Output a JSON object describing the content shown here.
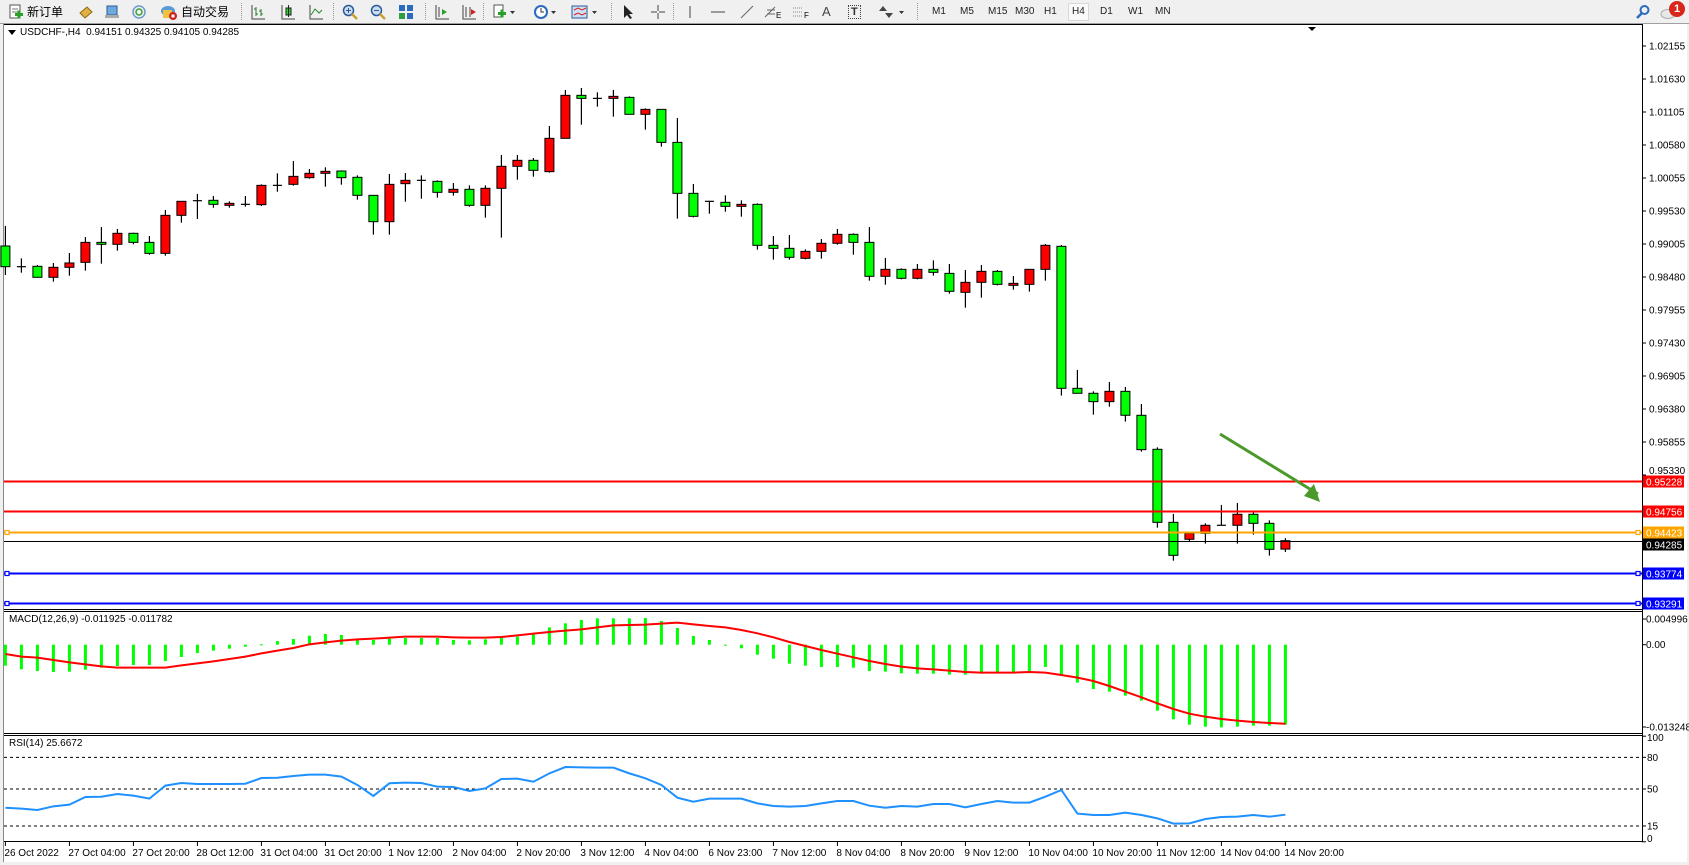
{
  "toolbar": {
    "new_order_label": "新订单",
    "auto_trading_label": "自动交易",
    "fibo_e_label": "E",
    "fibo_f_label": "F",
    "text_label": "A",
    "text_label_tool": "T",
    "timeframes": [
      "M1",
      "M5",
      "M15",
      "M30",
      "H1",
      "H4",
      "D1",
      "W1",
      "MN"
    ],
    "active_timeframe": "H4",
    "notification_count": "1",
    "icons": [
      "new-order-icon",
      "market-watch-icon",
      "navigator-icon",
      "signals-icon",
      "auto-trading-icon",
      "bar-chart-icon",
      "candlestick-icon",
      "line-chart-icon",
      "zoom-in-icon",
      "zoom-out-icon",
      "tile-windows-icon",
      "auto-scroll-icon",
      "chart-shift-icon",
      "new-chart-icon",
      "periods-clock-icon",
      "template-icon",
      "cursor-icon",
      "crosshair-icon",
      "vertical-line-icon",
      "horizontal-line-icon",
      "trendline-icon",
      "fibonacci-icon",
      "fibonacci-fan-icon",
      "text-icon",
      "text-label-icon",
      "arrows-icon",
      "search-icon",
      "notification-icon"
    ]
  },
  "chart": {
    "header": "USDCHF-,H4  0.94151 0.94325 0.94105 0.94285",
    "macd_label": "MACD(12,26,9) -0.011925 -0.011782",
    "rsi_label": "RSI(14) 25.6672",
    "colors": {
      "bull": "#ff0000",
      "bear": "#00ff00",
      "macd_hist": "#00ff00",
      "macd_signal": "#ff0000",
      "rsi": "#1e90ff",
      "arrow": "#4a9a2a"
    }
  },
  "chart_data": [
    {
      "type": "candlestick",
      "symbol": "USDCHF-",
      "timeframe": "H4",
      "ohlc_order": [
        "open",
        "high",
        "low",
        "close"
      ],
      "y_ticks": [
        "1.02155",
        "1.01630",
        "1.01105",
        "1.00580",
        "1.00055",
        "0.99530",
        "0.99005",
        "0.98480",
        "0.97955",
        "0.97430",
        "0.96905",
        "0.96380",
        "0.95855",
        "0.95330"
      ],
      "ylim": [
        0.93198,
        1.02489
      ],
      "x_tick_labels": [
        "26 Oct 2022",
        "27 Oct 04:00",
        "27 Oct 20:00",
        "28 Oct 12:00",
        "31 Oct 04:00",
        "31 Oct 20:00",
        "1 Nov 12:00",
        "2 Nov 04:00",
        "2 Nov 20:00",
        "3 Nov 12:00",
        "4 Nov 04:00",
        "6 Nov 23:00",
        "7 Nov 12:00",
        "8 Nov 04:00",
        "8 Nov 20:00",
        "9 Nov 12:00",
        "10 Nov 04:00",
        "10 Nov 20:00",
        "11 Nov 12:00",
        "14 Nov 04:00",
        "14 Nov 20:00"
      ],
      "horizontal_lines": [
        {
          "price": "0.95228",
          "color": "#ff0000"
        },
        {
          "price": "0.94756",
          "color": "#ff0000"
        },
        {
          "price": "0.94423",
          "color": "#ffa500"
        },
        {
          "price": "0.94285",
          "color": "#000000"
        },
        {
          "price": "0.93774",
          "color": "#0000ff"
        },
        {
          "price": "0.93291",
          "color": "#0000ff"
        }
      ],
      "candles": [
        [
          0.98973,
          0.99291,
          0.98512,
          0.98644
        ],
        [
          0.98644,
          0.98777,
          0.98549,
          0.98644
        ],
        [
          0.9865,
          0.98671,
          0.98475,
          0.98475
        ],
        [
          0.98475,
          0.98703,
          0.98406,
          0.98634
        ],
        [
          0.98634,
          0.98862,
          0.98501,
          0.98703
        ],
        [
          0.98713,
          0.99116,
          0.98581,
          0.99031
        ],
        [
          0.99031,
          0.99275,
          0.98692,
          0.99
        ],
        [
          0.99,
          0.99244,
          0.98899,
          0.99175
        ],
        [
          0.99175,
          0.99185,
          0.99,
          0.99031
        ],
        [
          0.99031,
          0.99132,
          0.98835,
          0.98856
        ],
        [
          0.98856,
          0.99546,
          0.98819,
          0.99461
        ],
        [
          0.99461,
          0.99684,
          0.99344,
          0.99684
        ],
        [
          0.99684,
          0.998,
          0.99403,
          0.99694
        ],
        [
          0.997,
          0.99769,
          0.99583,
          0.99636
        ],
        [
          0.9962,
          0.99684,
          0.99583,
          0.99652
        ],
        [
          0.99636,
          0.99769,
          0.99599,
          0.99636
        ],
        [
          0.99631,
          0.99954,
          0.99609,
          0.99938
        ],
        [
          0.99938,
          1.00129,
          0.99837,
          0.99938
        ],
        [
          0.99954,
          1.00325,
          0.99933,
          1.00081
        ],
        [
          1.0006,
          1.00198,
          1.00044,
          1.00129
        ],
        [
          1.00129,
          1.00225,
          0.99917,
          1.00161
        ],
        [
          1.00166,
          1.00177,
          0.99949,
          1.0006
        ],
        [
          1.00066,
          1.00097,
          0.9971,
          0.99779
        ],
        [
          0.99779,
          0.99779,
          0.99153,
          0.9936
        ],
        [
          0.9936,
          1.00119,
          0.99153,
          0.99954
        ],
        [
          0.99965,
          1.00134,
          0.99678,
          1.00018
        ],
        [
          1.00018,
          1.00097,
          0.99726,
          1.00002
        ],
        [
          1.00002,
          1.00018,
          0.99742,
          0.99827
        ],
        [
          0.99827,
          0.99975,
          0.99774,
          0.99875
        ],
        [
          0.99875,
          0.99938,
          0.99599,
          0.9962
        ],
        [
          0.9962,
          0.99938,
          0.99424,
          0.99891
        ],
        [
          0.99891,
          1.00421,
          0.99106,
          1.00241
        ],
        [
          1.00241,
          1.00421,
          1.00028,
          1.00336
        ],
        [
          1.00336,
          1.00373,
          1.00076,
          1.00177
        ],
        [
          1.00156,
          1.00882,
          1.0014,
          1.00686
        ],
        [
          1.00686,
          1.01455,
          1.00686,
          1.0137
        ],
        [
          1.0137,
          1.01487,
          1.00903,
          1.01322
        ],
        [
          1.01322,
          1.01418,
          1.0119,
          1.01322
        ],
        [
          1.01322,
          1.01455,
          1.01031,
          1.01354
        ],
        [
          1.01338,
          1.01354,
          1.01068,
          1.01068
        ],
        [
          1.01068,
          1.01163,
          1.00824,
          1.01147
        ],
        [
          1.01147,
          1.01147,
          1.00553,
          1.00622
        ],
        [
          1.00622,
          1.01009,
          0.99408,
          0.99811
        ],
        [
          0.99811,
          0.99959,
          0.99429,
          0.99445
        ],
        [
          0.99684,
          0.99684,
          0.99487,
          0.99684
        ],
        [
          0.99668,
          0.99779,
          0.99519,
          0.99604
        ],
        [
          0.99604,
          0.997,
          0.9944,
          0.99636
        ],
        [
          0.99636,
          0.99652,
          0.98915,
          0.98984
        ],
        [
          0.98984,
          0.99132,
          0.98756,
          0.98936
        ],
        [
          0.98936,
          0.99148,
          0.98756,
          0.98793
        ],
        [
          0.98777,
          0.9892,
          0.98761,
          0.98888
        ],
        [
          0.98888,
          0.99084,
          0.98772,
          0.99016
        ],
        [
          0.99016,
          0.99244,
          0.98994,
          0.99159
        ],
        [
          0.99159,
          0.99175,
          0.98835,
          0.99031
        ],
        [
          0.99031,
          0.99275,
          0.98422,
          0.98491
        ],
        [
          0.98491,
          0.98782,
          0.98358,
          0.98602
        ],
        [
          0.98602,
          0.98618,
          0.98443,
          0.98459
        ],
        [
          0.98459,
          0.98687,
          0.98443,
          0.98602
        ],
        [
          0.98602,
          0.98745,
          0.98501,
          0.98554
        ],
        [
          0.98538,
          0.98687,
          0.98215,
          0.98252
        ],
        [
          0.98236,
          0.98591,
          0.97992,
          0.98395
        ],
        [
          0.98395,
          0.98671,
          0.98151,
          0.9857
        ],
        [
          0.9857,
          0.98591,
          0.98347,
          0.98363
        ],
        [
          0.98347,
          0.98496,
          0.98278,
          0.98379
        ],
        [
          0.98363,
          0.98602,
          0.98247,
          0.98602
        ],
        [
          0.98602,
          0.99005,
          0.98422,
          0.98984
        ],
        [
          0.98968,
          0.98989,
          0.96592,
          0.96709
        ],
        [
          0.96709,
          0.97001,
          0.9663,
          0.9663
        ],
        [
          0.9663,
          0.96661,
          0.9629,
          0.96497
        ],
        [
          0.96497,
          0.9681,
          0.96417,
          0.96661
        ],
        [
          0.96661,
          0.9673,
          0.96179,
          0.9628
        ],
        [
          0.9628,
          0.9646,
          0.95702,
          0.95733
        ],
        [
          0.95739,
          0.9577,
          0.94492,
          0.94577
        ],
        [
          0.94577,
          0.9471,
          0.93967,
          0.94052
        ],
        [
          0.94307,
          0.94402,
          0.94275,
          0.94402
        ],
        [
          0.94402,
          0.94561,
          0.94238,
          0.9453
        ],
        [
          0.9453,
          0.94853,
          0.9453,
          0.9453
        ],
        [
          0.9453,
          0.94885,
          0.94238,
          0.94705
        ],
        [
          0.94705,
          0.94758,
          0.94381,
          0.94561
        ],
        [
          0.94561,
          0.94609,
          0.94047,
          0.94148
        ],
        [
          0.94151,
          0.94325,
          0.94105,
          0.94285
        ]
      ]
    },
    {
      "type": "bar",
      "indicator": "MACD(12,26,9)",
      "y_ticks": [
        "0.004996",
        "0.00",
        "-0.013248"
      ],
      "ylim": [
        -0.013248,
        0.004996
      ],
      "histogram": [
        -0.003125,
        -0.003671,
        -0.00392,
        -0.004069,
        -0.004019,
        -0.003721,
        -0.003423,
        -0.003174,
        -0.003025,
        -0.003025,
        -0.002429,
        -0.001833,
        -0.001237,
        -0.000889,
        -0.000591,
        -0.000293,
        5.5e-05,
        0.000551,
        0.000849,
        0.001346,
        0.001595,
        0.001446,
        0.000849,
        0.0007,
        0.000949,
        0.000999,
        0.000999,
        0.000999,
        0.0007,
        0.000651,
        0.0008,
        0.001297,
        0.001197,
        0.001694,
        0.002589,
        0.003185,
        0.003681,
        0.00393,
        0.00393,
        0.00393,
        0.003979,
        0.003532,
        0.002489,
        0.001297,
        0.0007,
        -4.5e-05,
        -0.000541,
        -0.001486,
        -0.002082,
        -0.002827,
        -0.003125,
        -0.003323,
        -0.003323,
        -0.003423,
        -0.00392,
        -0.004019,
        -0.004267,
        -0.004317,
        -0.004317,
        -0.004466,
        -0.004466,
        -0.004317,
        -0.004118,
        -0.004069,
        -0.00392,
        -0.003323,
        -0.004615,
        -0.005659,
        -0.006602,
        -0.007,
        -0.007596,
        -0.008341,
        -0.009831,
        -0.011122,
        -0.011918,
        -0.012216,
        -0.012314,
        -0.012216,
        -0.012067,
        -0.012067,
        -0.011925
      ],
      "signal": [
        -0.001386,
        -0.001783,
        -0.001932,
        -0.00228,
        -0.002628,
        -0.002926,
        -0.003224,
        -0.003423,
        -0.003423,
        -0.003423,
        -0.003423,
        -0.003075,
        -0.002777,
        -0.002479,
        -0.002131,
        -0.001783,
        -0.001287,
        -0.000889,
        -0.000492,
        5.5e-05,
        0.000353,
        0.000601,
        0.0008,
        0.000899,
        0.001048,
        0.001197,
        0.001197,
        0.001197,
        0.001098,
        0.001048,
        0.001048,
        0.001147,
        0.001396,
        0.001644,
        0.001893,
        0.002091,
        0.00229,
        0.002589,
        0.002887,
        0.002937,
        0.002986,
        0.003135,
        0.003284,
        0.003035,
        0.002787,
        0.002589,
        0.002191,
        0.001694,
        0.001098,
        0.000402,
        -0.000194,
        -0.00079,
        -0.001336,
        -0.001883,
        -0.002429,
        -0.002876,
        -0.003274,
        -0.003522,
        -0.003671,
        -0.00387,
        -0.004069,
        -0.004168,
        -0.004168,
        -0.004168,
        -0.004069,
        -0.004168,
        -0.004516,
        -0.004913,
        -0.00541,
        -0.006155,
        -0.007,
        -0.007844,
        -0.008738,
        -0.009583,
        -0.010279,
        -0.010726,
        -0.011073,
        -0.011322,
        -0.01152,
        -0.011669,
        -0.011782
      ]
    },
    {
      "type": "line",
      "indicator": "RSI(14)",
      "y_ticks": [
        "100",
        "80",
        "50",
        "15",
        "0"
      ],
      "levels": [
        80,
        50,
        15
      ],
      "ylim": [
        0,
        100
      ],
      "values": [
        32.3,
        31.4,
        30.1,
        33.6,
        35.2,
        42.4,
        42.7,
        45.3,
        43.7,
        40.9,
        53.2,
        55.7,
        54.7,
        54.7,
        54.7,
        55.0,
        60.4,
        60.7,
        62.3,
        63.6,
        63.6,
        61.7,
        53.8,
        43.4,
        55.4,
        56.0,
        55.7,
        52.2,
        51.9,
        48.1,
        50.6,
        59.5,
        59.8,
        56.9,
        64.8,
        70.8,
        70.5,
        70.2,
        70.2,
        64.8,
        60.1,
        53.8,
        41.8,
        38.0,
        40.9,
        40.9,
        40.9,
        36.4,
        33.9,
        33.3,
        33.9,
        36.4,
        38.6,
        38.6,
        34.2,
        32.3,
        33.9,
        33.3,
        35.8,
        35.8,
        32.6,
        35.8,
        38.6,
        37.1,
        37.1,
        42.7,
        49.1,
        26.7,
        25.4,
        25.4,
        27.6,
        25.4,
        22.2,
        17.2,
        17.5,
        21.6,
        23.5,
        23.8,
        25.4,
        23.8,
        25.67
      ]
    }
  ]
}
